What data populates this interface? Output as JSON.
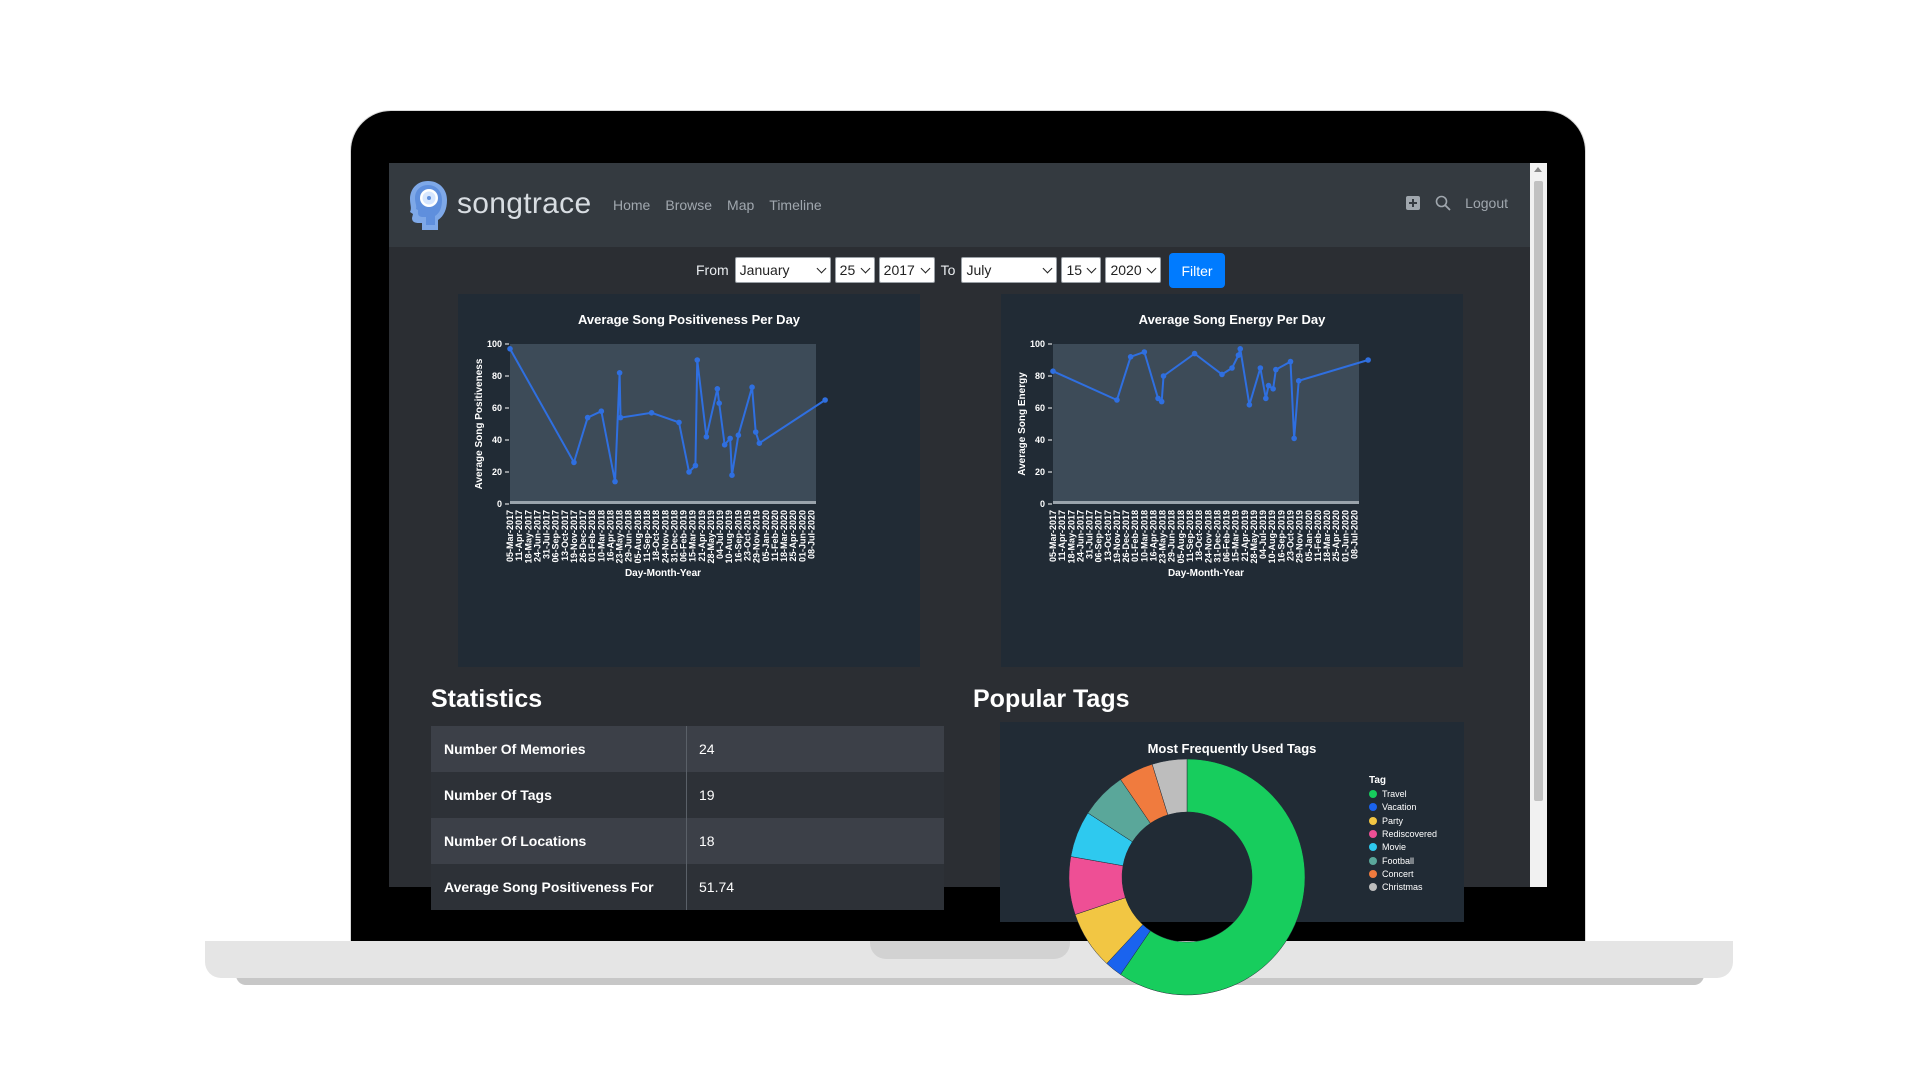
{
  "nav": {
    "brand": "songtrace",
    "links": [
      "Home",
      "Browse",
      "Map",
      "Timeline"
    ],
    "logout": "Logout",
    "icons": [
      "plus-square-icon",
      "search-icon"
    ]
  },
  "filter": {
    "from_label": "From",
    "to_label": "To",
    "from_month": "January",
    "from_day": "25",
    "from_year": "2017",
    "to_month": "July",
    "to_day": "15",
    "to_year": "2020",
    "button": "Filter"
  },
  "sections": {
    "statistics": "Statistics",
    "popular_tags": "Popular Tags"
  },
  "statistics": [
    {
      "label": "Number Of Memories",
      "value": "24"
    },
    {
      "label": "Number Of Tags",
      "value": "19"
    },
    {
      "label": "Number Of Locations",
      "value": "18"
    },
    {
      "label": "Average Song Positiveness For",
      "value": "51.74"
    }
  ],
  "chart_data": [
    {
      "type": "line",
      "title": "Average Song Positiveness Per Day",
      "xlabel": "Day-Month-Year",
      "ylabel": "Average Song Positiveness",
      "ylim": [
        0,
        100
      ],
      "yticks": [
        0,
        20,
        40,
        60,
        80,
        100
      ],
      "grid": false,
      "x_ticks": [
        "05-Mar-2017",
        "11-Apr-2017",
        "18-May-2017",
        "24-Jun-2017",
        "31-Jul-2017",
        "06-Sep-2017",
        "13-Oct-2017",
        "19-Nov-2017",
        "26-Dec-2017",
        "01-Feb-2018",
        "10-Mar-2018",
        "16-Apr-2018",
        "23-May-2018",
        "29-Jun-2018",
        "05-Aug-2018",
        "11-Sep-2018",
        "18-Oct-2018",
        "24-Nov-2018",
        "31-Dec-2018",
        "06-Feb-2019",
        "15-Mar-2019",
        "21-Apr-2019",
        "28-May-2019",
        "04-Jul-2019",
        "10-Aug-2019",
        "16-Sep-2019",
        "23-Oct-2019",
        "29-Nov-2019",
        "05-Jan-2020",
        "11-Feb-2020",
        "18-Mar-2020",
        "25-Apr-2020",
        "01-Jun-2020",
        "08-Jul-2020"
      ],
      "points": [
        {
          "x": 0,
          "y": 97
        },
        {
          "x": 7.0,
          "y": 26
        },
        {
          "x": 8.5,
          "y": 54
        },
        {
          "x": 10.0,
          "y": 58
        },
        {
          "x": 11.5,
          "y": 14
        },
        {
          "x": 12.0,
          "y": 82
        },
        {
          "x": 12.1,
          "y": 54
        },
        {
          "x": 15.5,
          "y": 57
        },
        {
          "x": 18.5,
          "y": 51
        },
        {
          "x": 19.6,
          "y": 20
        },
        {
          "x": 20.3,
          "y": 24
        },
        {
          "x": 20.5,
          "y": 90
        },
        {
          "x": 21.5,
          "y": 42
        },
        {
          "x": 22.7,
          "y": 72
        },
        {
          "x": 22.9,
          "y": 63
        },
        {
          "x": 23.5,
          "y": 37
        },
        {
          "x": 24.1,
          "y": 41
        },
        {
          "x": 24.3,
          "y": 18
        },
        {
          "x": 25.0,
          "y": 43
        },
        {
          "x": 26.5,
          "y": 73
        },
        {
          "x": 26.9,
          "y": 45
        },
        {
          "x": 27.3,
          "y": 38
        },
        {
          "x": 34.5,
          "y": 65
        }
      ]
    },
    {
      "type": "line",
      "title": "Average Song Energy Per Day",
      "xlabel": "Day-Month-Year",
      "ylabel": "Average Song Energy",
      "ylim": [
        0,
        100
      ],
      "yticks": [
        0,
        20,
        40,
        60,
        80,
        100
      ],
      "grid": false,
      "x_ticks": [
        "05-Mar-2017",
        "11-Apr-2017",
        "18-May-2017",
        "24-Jun-2017",
        "31-Jul-2017",
        "06-Sep-2017",
        "13-Oct-2017",
        "19-Nov-2017",
        "26-Dec-2017",
        "01-Feb-2018",
        "10-Mar-2018",
        "16-Apr-2018",
        "23-May-2018",
        "29-Jun-2018",
        "05-Aug-2018",
        "11-Sep-2018",
        "18-Oct-2018",
        "24-Nov-2018",
        "31-Dec-2018",
        "06-Feb-2019",
        "15-Mar-2019",
        "21-Apr-2019",
        "28-May-2019",
        "04-Jul-2019",
        "10-Aug-2019",
        "16-Sep-2019",
        "23-Oct-2019",
        "29-Nov-2019",
        "05-Jan-2020",
        "11-Feb-2020",
        "18-Mar-2020",
        "25-Apr-2020",
        "01-Jun-2020",
        "08-Jul-2020"
      ],
      "points": [
        {
          "x": 0,
          "y": 83
        },
        {
          "x": 7.0,
          "y": 65
        },
        {
          "x": 8.5,
          "y": 92
        },
        {
          "x": 10.0,
          "y": 95
        },
        {
          "x": 11.5,
          "y": 66
        },
        {
          "x": 11.9,
          "y": 64
        },
        {
          "x": 12.1,
          "y": 80
        },
        {
          "x": 15.5,
          "y": 94
        },
        {
          "x": 18.5,
          "y": 81
        },
        {
          "x": 19.6,
          "y": 85
        },
        {
          "x": 20.3,
          "y": 93
        },
        {
          "x": 20.5,
          "y": 97
        },
        {
          "x": 21.5,
          "y": 62
        },
        {
          "x": 22.7,
          "y": 85
        },
        {
          "x": 23.3,
          "y": 66
        },
        {
          "x": 23.6,
          "y": 74
        },
        {
          "x": 24.1,
          "y": 72
        },
        {
          "x": 24.4,
          "y": 84
        },
        {
          "x": 26.0,
          "y": 89
        },
        {
          "x": 26.4,
          "y": 41
        },
        {
          "x": 26.9,
          "y": 77
        },
        {
          "x": 34.5,
          "y": 90
        }
      ]
    },
    {
      "type": "pie",
      "title": "Most Frequently Used Tags",
      "legend_title": "Tag",
      "labels": [
        "Travel",
        "Vacation",
        "Party",
        "Rediscovered",
        "Movie",
        "Football",
        "Concert",
        "Christmas"
      ],
      "values": [
        7.5,
        0.3,
        1.0,
        1.0,
        0.8,
        0.8,
        0.6,
        0.6
      ],
      "colors": [
        "#17cd5d",
        "#1a63ee",
        "#f2c643",
        "#ee4f95",
        "#2ec9ef",
        "#5aa79a",
        "#f07b3e",
        "#bdbdbd"
      ],
      "donut": true,
      "legend_position": "right"
    }
  ]
}
